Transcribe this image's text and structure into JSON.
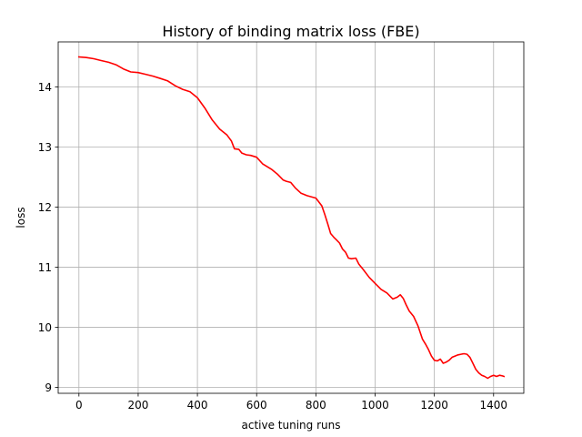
{
  "chart_data": {
    "type": "line",
    "title": "History of binding matrix loss (FBE)",
    "xlabel": "active tuning runs",
    "ylabel": "loss",
    "xlim": [
      -70,
      1502
    ],
    "ylim": [
      8.9,
      14.75
    ],
    "xticks": [
      0,
      200,
      400,
      600,
      800,
      1000,
      1200,
      1400
    ],
    "yticks": [
      9,
      10,
      11,
      12,
      13,
      14
    ],
    "grid": true,
    "legend": "none",
    "series": [
      {
        "color": "#ff0000",
        "x": [
          0,
          25,
          50,
          75,
          100,
          125,
          150,
          175,
          200,
          225,
          250,
          275,
          300,
          325,
          350,
          375,
          400,
          425,
          450,
          475,
          500,
          515,
          525,
          540,
          550,
          565,
          580,
          600,
          620,
          650,
          670,
          690,
          700,
          715,
          730,
          750,
          770,
          800,
          820,
          830,
          840,
          850,
          860,
          870,
          880,
          890,
          900,
          910,
          920,
          935,
          945,
          960,
          980,
          1000,
          1020,
          1040,
          1060,
          1075,
          1085,
          1095,
          1105,
          1115,
          1130,
          1145,
          1160,
          1170,
          1180,
          1190,
          1200,
          1210,
          1220,
          1230,
          1240,
          1250,
          1260,
          1270,
          1280,
          1290,
          1300,
          1310,
          1320,
          1330,
          1340,
          1350,
          1360,
          1370,
          1380,
          1390,
          1400,
          1410,
          1420,
          1430,
          1435
        ],
        "y": [
          14.5,
          14.49,
          14.47,
          14.44,
          14.41,
          14.37,
          14.3,
          14.25,
          14.24,
          14.21,
          14.18,
          14.14,
          14.1,
          14.02,
          13.96,
          13.92,
          13.82,
          13.65,
          13.45,
          13.3,
          13.2,
          13.1,
          12.97,
          12.96,
          12.9,
          12.87,
          12.86,
          12.83,
          12.72,
          12.63,
          12.55,
          12.45,
          12.43,
          12.41,
          12.32,
          12.23,
          12.19,
          12.15,
          12.02,
          11.88,
          11.72,
          11.56,
          11.5,
          11.45,
          11.4,
          11.3,
          11.25,
          11.15,
          11.14,
          11.15,
          11.05,
          10.96,
          10.83,
          10.73,
          10.63,
          10.57,
          10.47,
          10.5,
          10.54,
          10.48,
          10.37,
          10.27,
          10.18,
          10.02,
          9.8,
          9.72,
          9.63,
          9.52,
          9.45,
          9.44,
          9.47,
          9.4,
          9.42,
          9.45,
          9.5,
          9.52,
          9.54,
          9.55,
          9.56,
          9.55,
          9.5,
          9.4,
          9.3,
          9.24,
          9.2,
          9.18,
          9.15,
          9.18,
          9.2,
          9.18,
          9.2,
          9.19,
          9.18
        ]
      }
    ]
  }
}
